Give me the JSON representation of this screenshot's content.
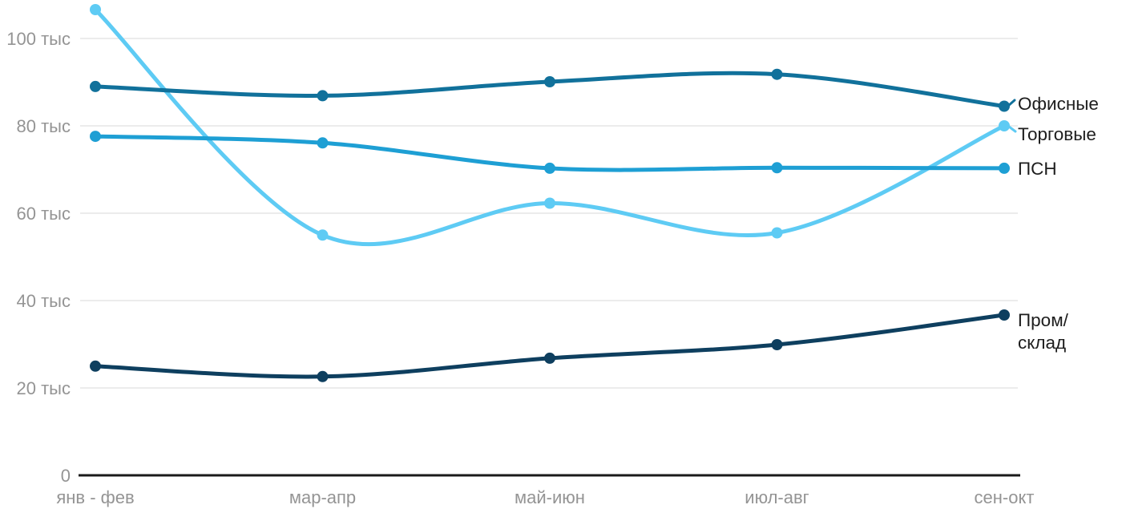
{
  "chart_data": {
    "type": "line",
    "title": "",
    "unit_suffix": "тыс",
    "categories": [
      "янв - фев",
      "мар-апр",
      "май-июн",
      "июл-авг",
      "сен-окт"
    ],
    "y_ticks": [
      {
        "value": 0,
        "label": "0"
      },
      {
        "value": 20,
        "label": "20 тыс"
      },
      {
        "value": 40,
        "label": "40 тыс"
      },
      {
        "value": 60,
        "label": "60 тыс"
      },
      {
        "value": 80,
        "label": "80 тыс"
      },
      {
        "value": 100,
        "label": "100 тыс"
      }
    ],
    "ylim": [
      0,
      110
    ],
    "grid": "horizontal-only",
    "legend_position": "right-inline-labels",
    "series": [
      {
        "key": "offices",
        "name": "Офисные",
        "label_lines": [
          "Офисные"
        ],
        "color": "#11719b",
        "values": [
          89,
          86.9,
          90.1,
          91.8,
          84.5
        ]
      },
      {
        "key": "retail",
        "name": "Торговые",
        "label_lines": [
          "Торговые"
        ],
        "color": "#5ecbf4",
        "values": [
          106.6,
          55,
          62.3,
          55.5,
          80
        ]
      },
      {
        "key": "psn",
        "name": "ПСН",
        "label_lines": [
          "ПСН"
        ],
        "color": "#1e9fd4",
        "values": [
          77.6,
          76.1,
          70.3,
          70.4,
          70.3
        ]
      },
      {
        "key": "industrial",
        "name": "Пром/склад",
        "label_lines": [
          "Пром/",
          "склад"
        ],
        "color": "#0e3f5f",
        "values": [
          25,
          22.6,
          26.8,
          29.9,
          36.7
        ]
      }
    ],
    "colors": {
      "background": "#ffffff",
      "gridline": "#e6e6e6",
      "axis_line": "#1a1a1a",
      "tick_text": "#949494",
      "series_label_text": "#1d1d1d"
    }
  }
}
